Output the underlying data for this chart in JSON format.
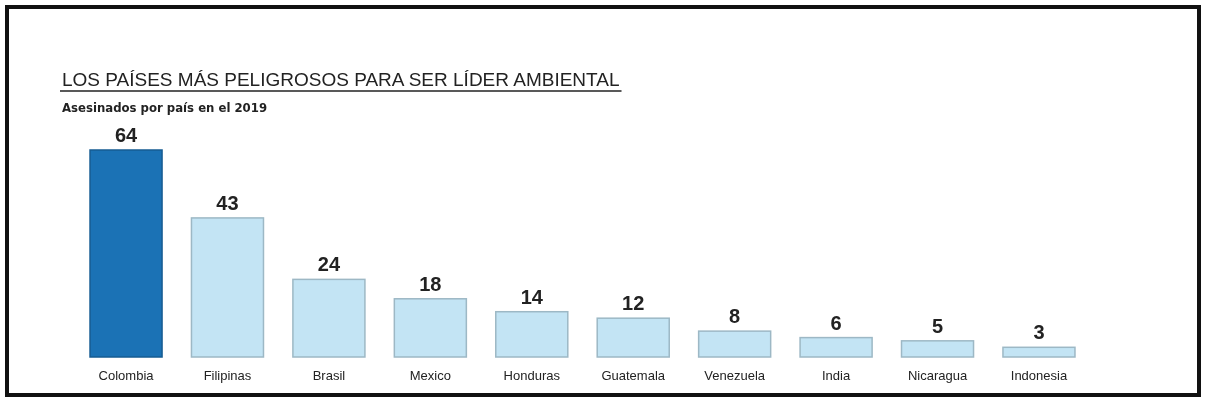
{
  "chart_data": {
    "type": "bar",
    "title": "LOS PAÍSES MÁS PELIGROSOS PARA SER LÍDER AMBIENTAL",
    "subtitle": "Asesinados por país en el 2019",
    "categories": [
      "Colombia",
      "Filipinas",
      "Brasil",
      "Mexico",
      "Honduras",
      "Guatemala",
      "Venezuela",
      "India",
      "Nicaragua",
      "Indonesia"
    ],
    "values": [
      64,
      43,
      24,
      18,
      14,
      12,
      8,
      6,
      5,
      3
    ],
    "colors": [
      "#1b72b5",
      "#c3e4f4",
      "#c3e4f4",
      "#c3e4f4",
      "#c3e4f4",
      "#c3e4f4",
      "#c3e4f4",
      "#c3e4f4",
      "#c3e4f4",
      "#c3e4f4"
    ],
    "data_labels": true
  }
}
